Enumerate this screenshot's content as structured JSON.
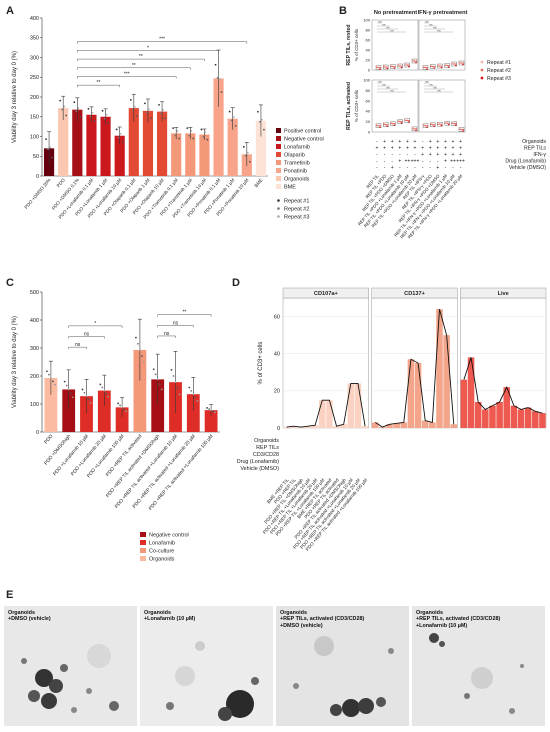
{
  "panels": {
    "A": {
      "letter": "A",
      "chart_data": {
        "type": "bar",
        "ylabel": "Viability day 3 relative to day 0 (%)",
        "ylim": [
          0,
          400
        ],
        "yticks": [
          "0",
          "50",
          "100",
          "150",
          "200",
          "250",
          "300",
          "350",
          "400"
        ],
        "categories": [
          "PDO +DMSO 20%",
          "PDO",
          "PDO +DMSO 0.1%",
          "PDO +Lonafarnib 0.1 µM",
          "PDO +Lonafarnib 1 µM",
          "PDO +Lonafarnib 10 µM",
          "PDO +Olaparib 0.1 µM",
          "PDO +Olaparib 1 µM",
          "PDO +Olaparib 10 µM",
          "PDO +Trametinib 0.1 µM",
          "PDO +Trametinib 1 µM",
          "PDO +Trametinib 10 µM",
          "PDO +Ponatinib 0.1 µM",
          "PDO +Ponatinib 1 µM",
          "PDO +Ponatinib 10 µM",
          "BME"
        ],
        "values": [
          70,
          172,
          168,
          155,
          150,
          102,
          172,
          165,
          163,
          108,
          108,
          105,
          247,
          145,
          55,
          140
        ],
        "errors": [
          42,
          30,
          30,
          20,
          20,
          22,
          35,
          30,
          25,
          15,
          15,
          14,
          72,
          28,
          30,
          40
        ],
        "groups": [
          "Positive control",
          "Organoids",
          "Negative control",
          "Lonafarnib",
          "Lonafarnib",
          "Lonafarnib",
          "Olaparib",
          "Olaparib",
          "Olaparib",
          "Trametinib",
          "Trametinib",
          "Trametinib",
          "Ponatinib",
          "Ponatinib",
          "Ponatinib",
          "BME"
        ],
        "brackets": [
          {
            "from": 2,
            "to": 5,
            "label": "**"
          },
          {
            "from": 2,
            "to": 9,
            "label": "***"
          },
          {
            "from": 2,
            "to": 10,
            "label": "**"
          },
          {
            "from": 2,
            "to": 11,
            "label": "**"
          },
          {
            "from": 2,
            "to": 12,
            "label": "*"
          },
          {
            "from": 2,
            "to": 14,
            "label": "***"
          }
        ],
        "legend": {
          "entries": [
            {
              "name": "Positive control",
              "color": "#67000d"
            },
            {
              "name": "Negative control",
              "color": "#a50f15"
            },
            {
              "name": "Lonafarnib",
              "color": "#cb181d"
            },
            {
              "name": "Olaparib",
              "color": "#e34a33"
            },
            {
              "name": "Trametinib",
              "color": "#f4987a"
            },
            {
              "name": "Ponatinib",
              "color": "#f7a48a"
            },
            {
              "name": "Organoids",
              "color": "#fbc7b0"
            },
            {
              "name": "BME",
              "color": "#fde3d6"
            }
          ],
          "repeats": [
            "Repeat #1",
            "Repeat #2",
            "Repeat #3"
          ],
          "placement": "right"
        }
      }
    },
    "B": {
      "letter": "B",
      "col_headers": [
        "No pretreatment",
        "IFN-γ pretreatment"
      ],
      "row_top_label": "REP TILs, rested",
      "row_bottom_label": "REP TILs, activated",
      "ylabel": "% of CD3+ cells",
      "top_ylim": [
        0,
        100
      ],
      "top_yticks": [
        "0",
        "20",
        "40",
        "60",
        "80",
        "100"
      ],
      "bottom_ylim": [
        0,
        100
      ],
      "bottom_yticks": [
        "0",
        "20",
        "40",
        "60",
        "80",
        "100"
      ],
      "repeats": [
        "Repeat #1",
        "Repeat #2",
        "Repeat #3"
      ],
      "repeat_colors": [
        "#f2b5a3",
        "#e87060",
        "#d7191c"
      ],
      "factor_rows": [
        "Organoids",
        "REP TILs",
        "IFN-γ",
        "Drug (Lonafarnib)",
        "Vehicle (DMSO)"
      ],
      "factor_signs": [
        [
          "-",
          "+",
          "+",
          "+",
          "+",
          "+",
          "-",
          "+",
          "+",
          "+",
          "+",
          "+"
        ],
        [
          "+",
          "+",
          "+",
          "+",
          "+",
          "+",
          "+",
          "+",
          "+",
          "+",
          "+",
          "+"
        ],
        [
          "-",
          "-",
          "-",
          "-",
          "-",
          "-",
          "+",
          "+",
          "+",
          "+",
          "+",
          "+"
        ],
        [
          "-",
          "-",
          "-",
          "+",
          "++",
          "+++",
          "-",
          "-",
          "-",
          "+",
          "++",
          "+++"
        ],
        [
          "-",
          "-",
          "+",
          "-",
          "-",
          "-",
          "-",
          "-",
          "+",
          "-",
          "-",
          "-"
        ]
      ],
      "xlabels": [
        "REP TIL",
        "REP TIL +PDO",
        "REP TIL +PDO +DMSO",
        "REP TIL +PDO +Lonafarnib 1 µM",
        "REP TIL +PDO +Lonafarnib 10 µM",
        "REP TIL +PDO +Lonafarnib 20 µM",
        "REP TIL +IFN-γ",
        "REP TIL +IFN-γ +PDO",
        "REP TIL +IFN-γ +PDO +DMSO",
        "REP TIL +IFN-γ +PDO +Lonafarnib 1 µM",
        "REP TIL +IFN-γ +PDO +Lonafarnib 10 µM",
        "REP TIL +IFN-γ +PDO +Lonafarnib 20 µM"
      ],
      "sig_label": "ns",
      "top_medians": [
        5,
        6,
        7,
        8,
        10,
        18,
        5,
        7,
        8,
        9,
        12,
        14
      ],
      "bottom_medians": [
        12,
        14,
        16,
        20,
        22,
        6,
        12,
        14,
        15,
        17,
        16,
        5
      ]
    },
    "C": {
      "letter": "C",
      "chart_data": {
        "type": "bar",
        "ylabel": "Viability day 3 relative to day 0 (%)",
        "ylim": [
          0,
          500
        ],
        "yticks": [
          "0",
          "100",
          "200",
          "300",
          "400",
          "500"
        ],
        "categories": [
          "PDO",
          "PDO +DMSOhigh",
          "PDO +Lonafarnib 10 µM",
          "PDO +Lonafarnib 20 µM",
          "PDO +Lonafarnib 100 µM",
          "PDO +REP TIL activated",
          "PDO +REP TIL activated +DMSOhigh",
          "PDO +REP TIL activated +Lonafarnib 10 µM",
          "PDO +REP TIL activated +Lonafarnib 20 µM",
          "PDO +REP TIL activated +Lonafarnib 100 µM"
        ],
        "values": [
          193,
          152,
          128,
          148,
          88,
          293,
          188,
          178,
          135,
          78
        ],
        "errors": [
          60,
          70,
          60,
          55,
          35,
          110,
          90,
          110,
          60,
          20
        ],
        "groups": [
          "Organoids",
          "Negative control",
          "Lonafarnib",
          "Lonafarnib",
          "Lonafarnib",
          "Co-culture",
          "Negative control",
          "Lonafarnib",
          "Lonafarnib",
          "Lonafarnib"
        ],
        "brackets": [
          {
            "from": 1,
            "to": 2,
            "label": "ns"
          },
          {
            "from": 1,
            "to": 3,
            "label": "ns"
          },
          {
            "from": 1,
            "to": 4,
            "label": "*"
          },
          {
            "from": 6,
            "to": 7,
            "label": "ns"
          },
          {
            "from": 6,
            "to": 8,
            "label": "ns"
          },
          {
            "from": 6,
            "to": 9,
            "label": "**"
          }
        ],
        "legend": {
          "entries": [
            {
              "name": "Negative control",
              "color": "#a50f15"
            },
            {
              "name": "Lonafarnib",
              "color": "#de2d26"
            },
            {
              "name": "Co-culture",
              "color": "#f4987a"
            },
            {
              "name": "Organoids",
              "color": "#fcbba1"
            }
          ],
          "placement": "bottom-right"
        }
      }
    },
    "D": {
      "letter": "D",
      "chart_data": {
        "type": "bar",
        "ylabel": "% of CD3+ cells",
        "ylim": [
          0,
          70
        ],
        "yticks": [
          "0",
          "20",
          "40",
          "60"
        ],
        "facets": [
          "CD107a+",
          "CD137+",
          "Live"
        ],
        "categories": [
          "BME +REP TIL",
          "PDO +REP TIL",
          "PDO +REP TIL +DMSOhigh",
          "PDO +REP TIL +Lonafarnib 10 µM",
          "PDO +REP TIL +Lonafarnib 20 µM",
          "PDO +REP TIL +Lonafarnib 100 µM",
          "BME +REP TIL activated",
          "PDO +REP TIL activated",
          "PDO +REP TIL activated +DMSOhigh",
          "PDO +REP TIL activated +Lonafarnib 10 µM",
          "PDO +REP TIL activated +Lonafarnib 20 µM",
          "PDO +REP TIL activated +Lonafarnib 100 µM"
        ],
        "series": [
          {
            "name": "CD107a+",
            "values": [
              0.5,
              1,
              0.5,
              1,
              1.5,
              15,
              15,
              1,
              2,
              24,
              24,
              1
            ],
            "color": "#fbd2c2"
          },
          {
            "name": "CD137+",
            "values": [
              3,
              0.5,
              2,
              2.5,
              3,
              37,
              35,
              4,
              3,
              64,
              50,
              2
            ],
            "color": "#f2a58a"
          },
          {
            "name": "Live",
            "values": [
              26,
              38,
              14,
              10,
              12,
              14,
              22,
              12,
              10,
              11,
              9,
              8
            ],
            "color": "#ee5a4f"
          }
        ],
        "factor_rows": [
          "Organoids",
          "REP TILs",
          "CD3/CD28",
          "Drug (Lonafarnib)",
          "Vehicle (DMSO)"
        ]
      }
    },
    "E": {
      "letter": "E",
      "captions": [
        [
          "Organoids",
          "+DMSO (vehicle)"
        ],
        [
          "Organoids",
          "+Lonafarnib (10 µM)"
        ],
        [
          "Organoids",
          "+REP TILs, activated (CD3/CD28)",
          "+DMSO (vehicle)"
        ],
        [
          "Organoids",
          "+REP TILs, activated (CD3/CD28)",
          "+Lonafarnib (10 µM)"
        ]
      ]
    }
  }
}
